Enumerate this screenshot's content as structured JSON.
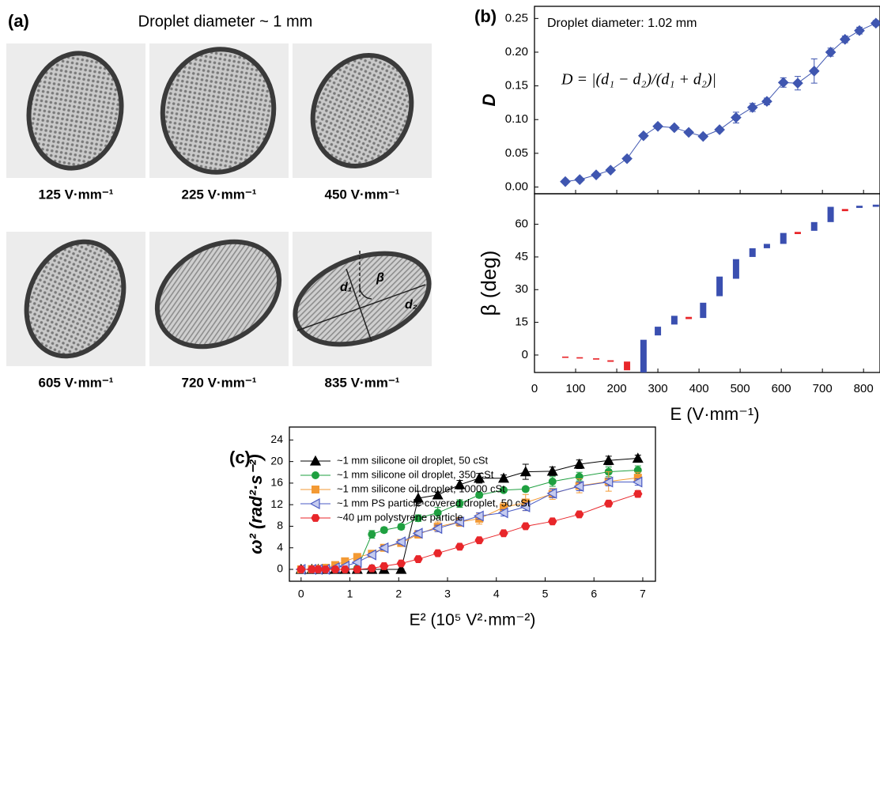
{
  "panel_a": {
    "label": "(a)",
    "title": "Droplet diameter ~ 1 mm",
    "images": [
      {
        "caption": "125 V·mm⁻¹"
      },
      {
        "caption": "225 V·mm⁻¹"
      },
      {
        "caption": "450 V·mm⁻¹"
      },
      {
        "caption": "605 V·mm⁻¹"
      },
      {
        "caption": "720 V·mm⁻¹"
      },
      {
        "caption": "835 V·mm⁻¹",
        "annotations": [
          "d₁",
          "β",
          "d₂"
        ]
      }
    ]
  },
  "chart_data": [
    {
      "type": "line",
      "panel_label": "(b)",
      "annotation": "Droplet diameter: 1.02 mm",
      "formula": "D = |(d₁ − d₂)/(d₁ + d₂)|",
      "y_label": "D",
      "color": "#3f56b0",
      "x": [
        75,
        110,
        150,
        185,
        225,
        265,
        300,
        340,
        375,
        410,
        450,
        490,
        530,
        565,
        605,
        640,
        680,
        720,
        755,
        790,
        830
      ],
      "values": [
        0.008,
        0.011,
        0.018,
        0.025,
        0.042,
        0.076,
        0.09,
        0.088,
        0.081,
        0.075,
        0.085,
        0.103,
        0.118,
        0.127,
        0.155,
        0.154,
        0.172,
        0.2,
        0.219,
        0.232,
        0.243
      ],
      "errors": [
        0.002,
        0.002,
        0.002,
        0.003,
        0.003,
        0.003,
        0.003,
        0.003,
        0.003,
        0.003,
        0.003,
        0.008,
        0.006,
        0.005,
        0.007,
        0.01,
        0.018,
        0.006,
        0.005,
        0.005,
        0.004
      ],
      "xlim": [
        0,
        840
      ],
      "ylim": [
        -0.01,
        0.268
      ],
      "yticks": [
        {
          "value": 0,
          "label": "0.00"
        },
        {
          "value": 0.05,
          "label": "0.05"
        },
        {
          "value": 0.1,
          "label": "0.10"
        },
        {
          "value": 0.15,
          "label": "0.15"
        },
        {
          "value": 0.2,
          "label": "0.20"
        },
        {
          "value": 0.25,
          "label": "0.25"
        }
      ]
    },
    {
      "type": "range-bar",
      "y_label": "β (deg)",
      "x_label": "E (V·mm⁻¹)",
      "x": [
        75,
        110,
        150,
        185,
        225,
        265,
        300,
        340,
        375,
        410,
        450,
        490,
        530,
        565,
        605,
        640,
        680,
        720,
        755,
        790,
        830
      ],
      "low": [
        -1.3,
        -1.6,
        -2.1,
        -3.1,
        -7,
        -8,
        9,
        14,
        16.5,
        17,
        27,
        35,
        45,
        49,
        51,
        55.5,
        57,
        61,
        66,
        67.5,
        68
      ],
      "high": [
        -0.7,
        -1.0,
        -1.5,
        -2.4,
        -3,
        7,
        13,
        18,
        17.5,
        24,
        36,
        44,
        49,
        51,
        56,
        56.5,
        61,
        68,
        67,
        68.5,
        69
      ],
      "colors": [
        "#e8262a",
        "#e8262a",
        "#e8262a",
        "#e8262a",
        "#e8262a",
        "#3a4fb0",
        "#3a4fb0",
        "#3a4fb0",
        "#e8262a",
        "#3a4fb0",
        "#3a4fb0",
        "#3a4fb0",
        "#3a4fb0",
        "#3a4fb0",
        "#3a4fb0",
        "#e8262a",
        "#3a4fb0",
        "#3a4fb0",
        "#e8262a",
        "#3a4fb0",
        "#3a4fb0"
      ],
      "xlim": [
        0,
        840
      ],
      "ylim": [
        -8,
        74
      ],
      "xticks": [
        0,
        100,
        200,
        300,
        400,
        500,
        600,
        700,
        800
      ],
      "yticks": [
        0,
        15,
        30,
        45,
        60
      ]
    },
    {
      "type": "line",
      "panel_label": "(c)",
      "y_label": "ω² (rad²·s⁻²)",
      "x_label": "E² (10⁵ V²·mm⁻²)",
      "x": [
        0,
        0.22,
        0.35,
        0.5,
        0.7,
        0.9,
        1.15,
        1.45,
        1.7,
        2.05,
        2.4,
        2.8,
        3.25,
        3.65,
        4.15,
        4.6,
        5.15,
        5.7,
        6.3,
        6.9
      ],
      "series": [
        {
          "name": "~1 mm silicone oil droplet, 50 cSt",
          "color": "#000000",
          "marker": "triangle",
          "values": [
            0,
            0,
            0,
            0,
            0,
            0,
            0,
            0,
            0,
            0,
            13.2,
            13.8,
            15.7,
            16.9,
            16.9,
            18.1,
            18.2,
            19.5,
            20.2,
            20.6
          ],
          "errors": [
            0,
            0,
            0,
            0,
            0,
            0,
            0,
            0,
            0,
            0.1,
            1.3,
            0.5,
            0.8,
            0.9,
            0.6,
            1.4,
            0.8,
            0.8,
            0.8,
            0.6
          ]
        },
        {
          "name": "~1 mm silicone oil droplet, 350 cSt",
          "color": "#1fa040",
          "marker": "circle",
          "values": [
            0,
            0,
            0,
            0,
            0,
            0,
            0.2,
            6.5,
            7.3,
            7.9,
            9.5,
            10.5,
            12.2,
            13.8,
            14.7,
            14.9,
            16.3,
            17.2,
            18.1,
            18.4
          ],
          "errors": [
            0,
            0,
            0,
            0,
            0,
            0,
            0.1,
            0.7,
            0.5,
            0.5,
            0.6,
            1.0,
            0.7,
            0.5,
            0.4,
            0.4,
            0.9,
            0.8,
            0.9,
            0.8
          ]
        },
        {
          "name": "~1 mm silicone oil droplet, 10000 cSt",
          "color": "#f39a34",
          "marker": "square",
          "values": [
            0,
            0.05,
            0.1,
            0.3,
            0.8,
            1.5,
            2.3,
            2.9,
            4.0,
            4.9,
            6.5,
            7.9,
            8.8,
            9.4,
            11.5,
            12.4,
            14.0,
            15.5,
            16.3,
            17.0
          ],
          "errors": [
            0,
            0,
            0,
            0.1,
            0.1,
            0.1,
            0.2,
            0.3,
            0.4,
            0.5,
            0.7,
            0.9,
            0.8,
            1.0,
            0.9,
            1.5,
            1.0,
            1.3,
            1.8,
            1.0
          ]
        },
        {
          "name": "~1 mm PS particle-covered droplet, 50 cSt",
          "color": "#4a5bc4",
          "marker": "left-triangle",
          "values": [
            0,
            0,
            0,
            0,
            0.3,
            0.6,
            1.3,
            2.7,
            4.0,
            5.1,
            6.7,
            7.6,
            8.8,
            9.9,
            10.5,
            11.6,
            14.1,
            15.4,
            16.2,
            16.2
          ],
          "errors": [
            0,
            0,
            0,
            0,
            0.1,
            0.1,
            0.2,
            0.3,
            0.4,
            0.4,
            0.5,
            0.6,
            0.6,
            0.6,
            0.6,
            0.7,
            0.8,
            0.8,
            0.7,
            0.6
          ]
        },
        {
          "name": "~40 μm polystyrene particle",
          "color": "#e8262a",
          "marker": "hexagon",
          "values": [
            0,
            0,
            0,
            0,
            0,
            0,
            0,
            0.2,
            0.6,
            1.1,
            1.9,
            3.0,
            4.2,
            5.4,
            6.7,
            8.0,
            8.9,
            10.2,
            12.2,
            14.0
          ],
          "errors": [
            0,
            0,
            0,
            0,
            0,
            0,
            0,
            0.1,
            0.1,
            0.2,
            0.2,
            0.2,
            0.2,
            0.2,
            0.2,
            0.3,
            0.4,
            0.4,
            0.5,
            0.6
          ]
        }
      ],
      "xlim": [
        -0.24,
        7.26
      ],
      "ylim": [
        -2.2,
        26.4
      ],
      "xticks": [
        0,
        1,
        2,
        3,
        4,
        5,
        6,
        7
      ],
      "yticks": [
        0,
        4,
        8,
        12,
        16,
        20,
        24
      ]
    }
  ]
}
